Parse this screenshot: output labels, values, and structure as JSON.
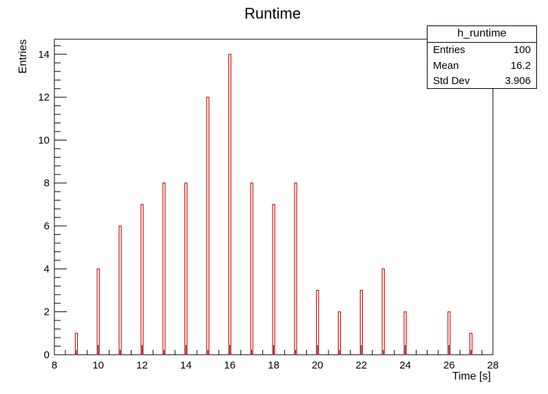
{
  "chart_data": {
    "type": "bar",
    "title": "Runtime",
    "xlabel": "Time [s]",
    "ylabel": "Entries",
    "xlim": [
      8,
      28
    ],
    "ylim": [
      0,
      14.7
    ],
    "x_ticks": [
      "8",
      "10",
      "12",
      "14",
      "16",
      "18",
      "20",
      "22",
      "24",
      "26",
      "28"
    ],
    "y_ticks": [
      "0",
      "2",
      "4",
      "6",
      "8",
      "10",
      "12",
      "14"
    ],
    "bar_color": "#cc0000",
    "series": [
      {
        "x": [
          9,
          10,
          11,
          12,
          13,
          14,
          15,
          16,
          17,
          18,
          19,
          20,
          21,
          22,
          23,
          24,
          26,
          27
        ],
        "values": [
          1,
          4,
          6,
          7,
          8,
          8,
          12,
          14,
          8,
          7,
          8,
          3,
          2,
          3,
          4,
          2,
          2,
          1
        ]
      }
    ],
    "grid": false,
    "legend": "none"
  },
  "stats": {
    "title": "h_runtime",
    "rows": [
      {
        "label": "Entries",
        "value": "100"
      },
      {
        "label": "Mean",
        "value": "16.2"
      },
      {
        "label": "Std Dev",
        "value": "3.906"
      }
    ]
  }
}
